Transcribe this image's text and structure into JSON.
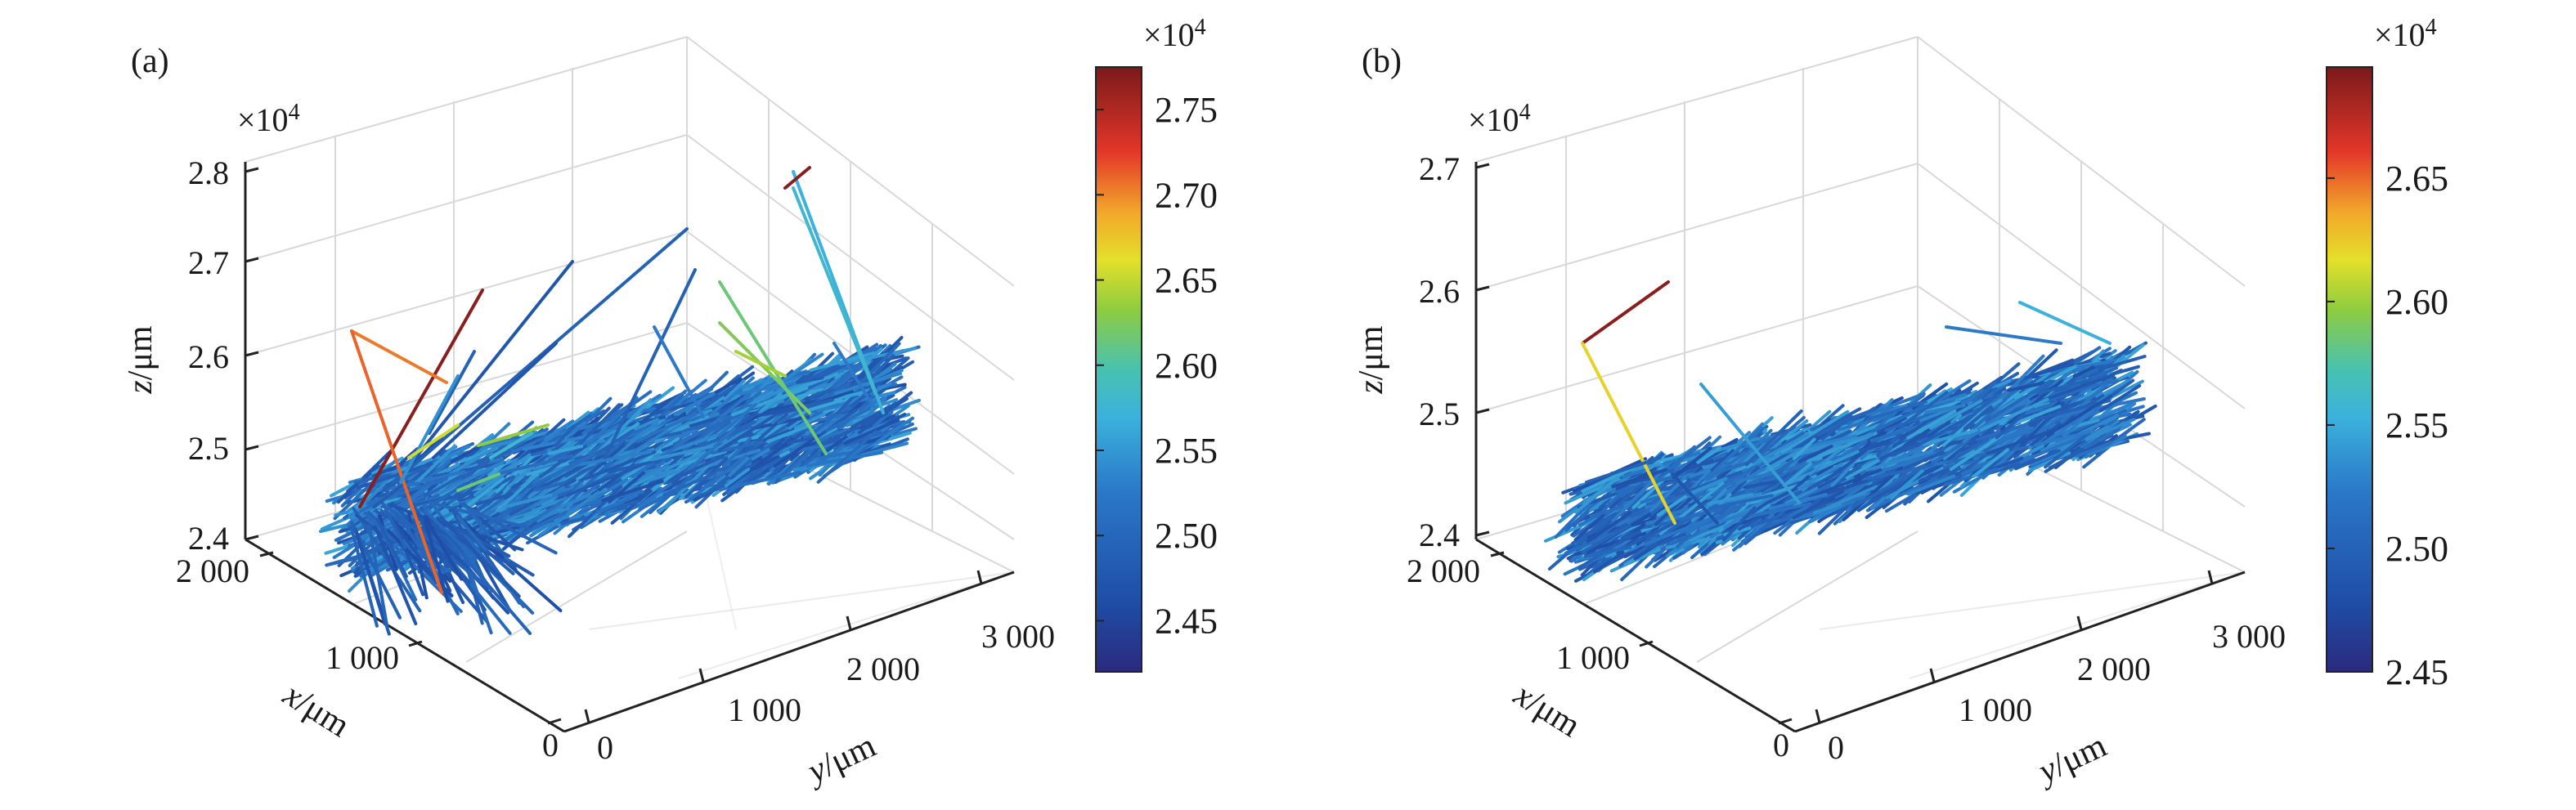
{
  "chart_data": [
    {
      "type": "scatter3d",
      "panel_label": "(a)",
      "zlabel_prefix": "z",
      "xlabel_prefix": "x",
      "ylabel_prefix": "y",
      "unit": "/μm",
      "z_multiplier": "×10",
      "z_multiplier_exp": "4",
      "z_ticks": [
        "2.4",
        "2.5",
        "2.6",
        "2.7",
        "2.8"
      ],
      "z_range": [
        24000,
        28000
      ],
      "x_ticks": [
        "0",
        "1 000",
        "2 000"
      ],
      "x_range": [
        0,
        2000
      ],
      "y_ticks": [
        "0",
        "1 000",
        "2 000",
        "3 000"
      ],
      "y_range": [
        0,
        3000
      ],
      "grid": true,
      "colorbar": {
        "multiplier": "×10",
        "multiplier_exp": "4",
        "ticks": [
          "2.45",
          "2.50",
          "2.55",
          "2.60",
          "2.65",
          "2.70",
          "2.75"
        ],
        "range": [
          2.42,
          2.775
        ],
        "colormap": "jet"
      },
      "description_of_marks": "dense bundle of fiber segments from (x≈1500,y≈200) to (x≈300,y≈3000) near z≈2.45–2.50e4, plus a few tall outlier fibers reaching z≈2.75e4"
    },
    {
      "type": "scatter3d",
      "panel_label": "(b)",
      "zlabel_prefix": "z",
      "xlabel_prefix": "x",
      "ylabel_prefix": "y",
      "unit": "/μm",
      "z_multiplier": "×10",
      "z_multiplier_exp": "4",
      "z_ticks": [
        "2.4",
        "2.5",
        "2.6",
        "2.7"
      ],
      "z_range": [
        24000,
        27000
      ],
      "x_ticks": [
        "0",
        "1 000",
        "2 000"
      ],
      "x_range": [
        0,
        2000
      ],
      "y_ticks": [
        "0",
        "1 000",
        "2 000",
        "3 000"
      ],
      "y_range": [
        0,
        3000
      ],
      "grid": true,
      "colorbar": {
        "multiplier": "×10",
        "multiplier_exp": "4",
        "ticks": [
          "2.45",
          "2.50",
          "2.55",
          "2.60",
          "2.65"
        ],
        "range": [
          2.45,
          2.695
        ],
        "colormap": "jet"
      },
      "description_of_marks": "dense bundle of fiber segments near z≈2.45–2.52e4 with fewer outliers, one fiber reaching z≈2.68e4"
    }
  ]
}
